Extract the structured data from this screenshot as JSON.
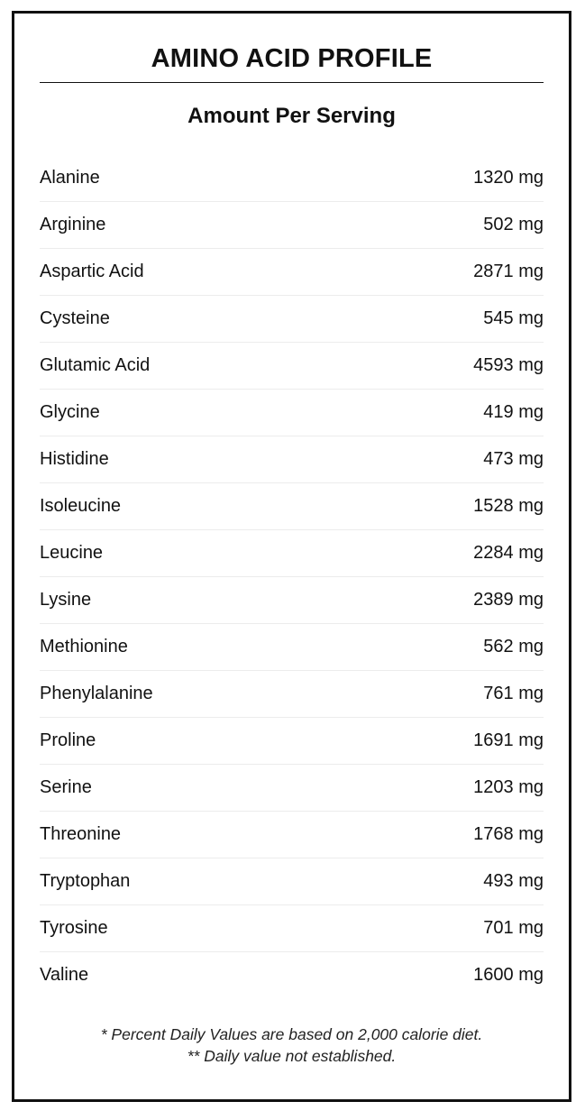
{
  "title": "AMINO ACID PROFILE",
  "subtitle": "Amount Per Serving",
  "items": [
    {
      "name": "Alanine",
      "amount": "1320 mg"
    },
    {
      "name": "Arginine",
      "amount": "502 mg"
    },
    {
      "name": "Aspartic Acid",
      "amount": "2871 mg"
    },
    {
      "name": "Cysteine",
      "amount": "545 mg"
    },
    {
      "name": "Glutamic Acid",
      "amount": "4593 mg"
    },
    {
      "name": "Glycine",
      "amount": "419 mg"
    },
    {
      "name": "Histidine",
      "amount": "473 mg"
    },
    {
      "name": "Isoleucine",
      "amount": "1528 mg"
    },
    {
      "name": "Leucine",
      "amount": "2284 mg"
    },
    {
      "name": "Lysine",
      "amount": "2389 mg"
    },
    {
      "name": "Methionine",
      "amount": "562 mg"
    },
    {
      "name": "Phenylalanine",
      "amount": "761 mg"
    },
    {
      "name": "Proline",
      "amount": "1691 mg"
    },
    {
      "name": "Serine",
      "amount": "1203 mg"
    },
    {
      "name": "Threonine",
      "amount": "1768 mg"
    },
    {
      "name": "Tryptophan",
      "amount": "493 mg"
    },
    {
      "name": "Tyrosine",
      "amount": "701 mg"
    },
    {
      "name": "Valine",
      "amount": "1600 mg"
    }
  ],
  "footer": {
    "line1": "* Percent Daily Values are based on 2,000 calorie diet.",
    "line2": "** Daily value not established."
  }
}
